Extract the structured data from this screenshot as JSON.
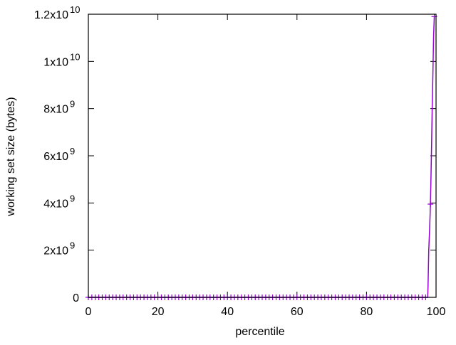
{
  "chart_data": {
    "type": "line",
    "xlabel": "percentile",
    "ylabel": "working set size (bytes)",
    "xlim": [
      0,
      100
    ],
    "ylim": [
      0,
      12000000000
    ],
    "grid": false,
    "x_ticks": [
      {
        "v": 0,
        "label": "0"
      },
      {
        "v": 20,
        "label": "20"
      },
      {
        "v": 40,
        "label": "40"
      },
      {
        "v": 60,
        "label": "60"
      },
      {
        "v": 80,
        "label": "80"
      },
      {
        "v": 100,
        "label": "100"
      }
    ],
    "y_ticks": [
      {
        "v": 0,
        "mant": "0",
        "exp": ""
      },
      {
        "v": 2000000000,
        "mant": "2x10",
        "exp": "9"
      },
      {
        "v": 4000000000,
        "mant": "4x10",
        "exp": "9"
      },
      {
        "v": 6000000000,
        "mant": "6x10",
        "exp": "9"
      },
      {
        "v": 8000000000,
        "mant": "8x10",
        "exp": "9"
      },
      {
        "v": 10000000000,
        "mant": "1x10",
        "exp": "10"
      },
      {
        "v": 12000000000,
        "mant": "1.2x10",
        "exp": "10"
      }
    ],
    "series_color": "#9400d3",
    "line": {
      "x": [
        0,
        97.6,
        97.7,
        97.9,
        98.1,
        98.3,
        98.5,
        98.7,
        98.9,
        99.1,
        99.3,
        99.5
      ],
      "y": [
        0,
        0,
        500000000,
        2000000000,
        2700000000,
        3550000000,
        4760000000,
        6300000000,
        8100000000,
        9500000000,
        11100000000,
        11900000000
      ]
    },
    "points": {
      "x": [
        0,
        1,
        2,
        3,
        4,
        5,
        6,
        7,
        8,
        9,
        10,
        11,
        12,
        13,
        14,
        15,
        16,
        17,
        18,
        19,
        20,
        21,
        22,
        23,
        24,
        25,
        26,
        27,
        28,
        29,
        30,
        31,
        32,
        33,
        34,
        35,
        36,
        37,
        38,
        39,
        40,
        41,
        42,
        43,
        44,
        45,
        46,
        47,
        48,
        49,
        50,
        51,
        52,
        53,
        54,
        55,
        56,
        57,
        58,
        59,
        60,
        61,
        62,
        63,
        64,
        65,
        66,
        67,
        68,
        69,
        70,
        71,
        72,
        73,
        74,
        75,
        76,
        77,
        78,
        79,
        80,
        81,
        82,
        83,
        84,
        85,
        86,
        87,
        88,
        89,
        90,
        91,
        92,
        93,
        94,
        95,
        96,
        97,
        98.4,
        99.5
      ],
      "y_nonzero": {
        "98.4": 3950000000,
        "99.5": 11900000000
      }
    }
  }
}
